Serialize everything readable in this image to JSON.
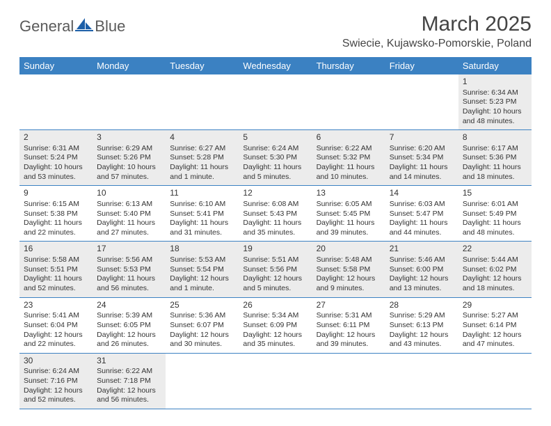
{
  "logo": {
    "word1": "General",
    "word2": "Blue"
  },
  "header": {
    "month_title": "March 2025",
    "location": "Swiecie, Kujawsko-Pomorskie, Poland"
  },
  "styling": {
    "header_bg": "#3b81c2",
    "header_text": "#ffffff",
    "border_color": "#3b81c2",
    "shaded_bg": "#ececec",
    "page_bg": "#ffffff",
    "body_text": "#333333",
    "logo_text_color": "#5a5a5a",
    "logo_icon_color": "#1d5fa8",
    "title_fontsize": 30,
    "location_fontsize": 16,
    "dayheader_fontsize": 13,
    "cell_fontsize": 10.5,
    "daynum_fontsize": 12
  },
  "day_headers": [
    "Sunday",
    "Monday",
    "Tuesday",
    "Wednesday",
    "Thursday",
    "Friday",
    "Saturday"
  ],
  "weeks": [
    [
      {
        "empty": true
      },
      {
        "empty": true
      },
      {
        "empty": true
      },
      {
        "empty": true
      },
      {
        "empty": true
      },
      {
        "empty": true
      },
      {
        "day": "1",
        "sunrise": "Sunrise: 6:34 AM",
        "sunset": "Sunset: 5:23 PM",
        "daylight1": "Daylight: 10 hours",
        "daylight2": "and 48 minutes.",
        "shaded": true
      }
    ],
    [
      {
        "day": "2",
        "sunrise": "Sunrise: 6:31 AM",
        "sunset": "Sunset: 5:24 PM",
        "daylight1": "Daylight: 10 hours",
        "daylight2": "and 53 minutes.",
        "shaded": true
      },
      {
        "day": "3",
        "sunrise": "Sunrise: 6:29 AM",
        "sunset": "Sunset: 5:26 PM",
        "daylight1": "Daylight: 10 hours",
        "daylight2": "and 57 minutes.",
        "shaded": true
      },
      {
        "day": "4",
        "sunrise": "Sunrise: 6:27 AM",
        "sunset": "Sunset: 5:28 PM",
        "daylight1": "Daylight: 11 hours",
        "daylight2": "and 1 minute.",
        "shaded": true
      },
      {
        "day": "5",
        "sunrise": "Sunrise: 6:24 AM",
        "sunset": "Sunset: 5:30 PM",
        "daylight1": "Daylight: 11 hours",
        "daylight2": "and 5 minutes.",
        "shaded": true
      },
      {
        "day": "6",
        "sunrise": "Sunrise: 6:22 AM",
        "sunset": "Sunset: 5:32 PM",
        "daylight1": "Daylight: 11 hours",
        "daylight2": "and 10 minutes.",
        "shaded": true
      },
      {
        "day": "7",
        "sunrise": "Sunrise: 6:20 AM",
        "sunset": "Sunset: 5:34 PM",
        "daylight1": "Daylight: 11 hours",
        "daylight2": "and 14 minutes.",
        "shaded": true
      },
      {
        "day": "8",
        "sunrise": "Sunrise: 6:17 AM",
        "sunset": "Sunset: 5:36 PM",
        "daylight1": "Daylight: 11 hours",
        "daylight2": "and 18 minutes.",
        "shaded": true
      }
    ],
    [
      {
        "day": "9",
        "sunrise": "Sunrise: 6:15 AM",
        "sunset": "Sunset: 5:38 PM",
        "daylight1": "Daylight: 11 hours",
        "daylight2": "and 22 minutes."
      },
      {
        "day": "10",
        "sunrise": "Sunrise: 6:13 AM",
        "sunset": "Sunset: 5:40 PM",
        "daylight1": "Daylight: 11 hours",
        "daylight2": "and 27 minutes."
      },
      {
        "day": "11",
        "sunrise": "Sunrise: 6:10 AM",
        "sunset": "Sunset: 5:41 PM",
        "daylight1": "Daylight: 11 hours",
        "daylight2": "and 31 minutes."
      },
      {
        "day": "12",
        "sunrise": "Sunrise: 6:08 AM",
        "sunset": "Sunset: 5:43 PM",
        "daylight1": "Daylight: 11 hours",
        "daylight2": "and 35 minutes."
      },
      {
        "day": "13",
        "sunrise": "Sunrise: 6:05 AM",
        "sunset": "Sunset: 5:45 PM",
        "daylight1": "Daylight: 11 hours",
        "daylight2": "and 39 minutes."
      },
      {
        "day": "14",
        "sunrise": "Sunrise: 6:03 AM",
        "sunset": "Sunset: 5:47 PM",
        "daylight1": "Daylight: 11 hours",
        "daylight2": "and 44 minutes."
      },
      {
        "day": "15",
        "sunrise": "Sunrise: 6:01 AM",
        "sunset": "Sunset: 5:49 PM",
        "daylight1": "Daylight: 11 hours",
        "daylight2": "and 48 minutes."
      }
    ],
    [
      {
        "day": "16",
        "sunrise": "Sunrise: 5:58 AM",
        "sunset": "Sunset: 5:51 PM",
        "daylight1": "Daylight: 11 hours",
        "daylight2": "and 52 minutes.",
        "shaded": true
      },
      {
        "day": "17",
        "sunrise": "Sunrise: 5:56 AM",
        "sunset": "Sunset: 5:53 PM",
        "daylight1": "Daylight: 11 hours",
        "daylight2": "and 56 minutes.",
        "shaded": true
      },
      {
        "day": "18",
        "sunrise": "Sunrise: 5:53 AM",
        "sunset": "Sunset: 5:54 PM",
        "daylight1": "Daylight: 12 hours",
        "daylight2": "and 1 minute.",
        "shaded": true
      },
      {
        "day": "19",
        "sunrise": "Sunrise: 5:51 AM",
        "sunset": "Sunset: 5:56 PM",
        "daylight1": "Daylight: 12 hours",
        "daylight2": "and 5 minutes.",
        "shaded": true
      },
      {
        "day": "20",
        "sunrise": "Sunrise: 5:48 AM",
        "sunset": "Sunset: 5:58 PM",
        "daylight1": "Daylight: 12 hours",
        "daylight2": "and 9 minutes.",
        "shaded": true
      },
      {
        "day": "21",
        "sunrise": "Sunrise: 5:46 AM",
        "sunset": "Sunset: 6:00 PM",
        "daylight1": "Daylight: 12 hours",
        "daylight2": "and 13 minutes.",
        "shaded": true
      },
      {
        "day": "22",
        "sunrise": "Sunrise: 5:44 AM",
        "sunset": "Sunset: 6:02 PM",
        "daylight1": "Daylight: 12 hours",
        "daylight2": "and 18 minutes.",
        "shaded": true
      }
    ],
    [
      {
        "day": "23",
        "sunrise": "Sunrise: 5:41 AM",
        "sunset": "Sunset: 6:04 PM",
        "daylight1": "Daylight: 12 hours",
        "daylight2": "and 22 minutes."
      },
      {
        "day": "24",
        "sunrise": "Sunrise: 5:39 AM",
        "sunset": "Sunset: 6:05 PM",
        "daylight1": "Daylight: 12 hours",
        "daylight2": "and 26 minutes."
      },
      {
        "day": "25",
        "sunrise": "Sunrise: 5:36 AM",
        "sunset": "Sunset: 6:07 PM",
        "daylight1": "Daylight: 12 hours",
        "daylight2": "and 30 minutes."
      },
      {
        "day": "26",
        "sunrise": "Sunrise: 5:34 AM",
        "sunset": "Sunset: 6:09 PM",
        "daylight1": "Daylight: 12 hours",
        "daylight2": "and 35 minutes."
      },
      {
        "day": "27",
        "sunrise": "Sunrise: 5:31 AM",
        "sunset": "Sunset: 6:11 PM",
        "daylight1": "Daylight: 12 hours",
        "daylight2": "and 39 minutes."
      },
      {
        "day": "28",
        "sunrise": "Sunrise: 5:29 AM",
        "sunset": "Sunset: 6:13 PM",
        "daylight1": "Daylight: 12 hours",
        "daylight2": "and 43 minutes."
      },
      {
        "day": "29",
        "sunrise": "Sunrise: 5:27 AM",
        "sunset": "Sunset: 6:14 PM",
        "daylight1": "Daylight: 12 hours",
        "daylight2": "and 47 minutes."
      }
    ],
    [
      {
        "day": "30",
        "sunrise": "Sunrise: 6:24 AM",
        "sunset": "Sunset: 7:16 PM",
        "daylight1": "Daylight: 12 hours",
        "daylight2": "and 52 minutes.",
        "shaded": true
      },
      {
        "day": "31",
        "sunrise": "Sunrise: 6:22 AM",
        "sunset": "Sunset: 7:18 PM",
        "daylight1": "Daylight: 12 hours",
        "daylight2": "and 56 minutes.",
        "shaded": true
      },
      {
        "empty": true
      },
      {
        "empty": true
      },
      {
        "empty": true
      },
      {
        "empty": true
      },
      {
        "empty": true
      }
    ]
  ]
}
